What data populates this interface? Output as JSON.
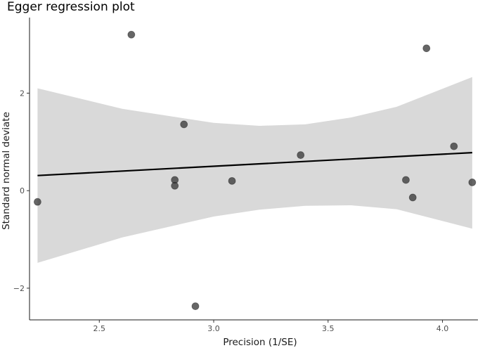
{
  "chart_data": {
    "type": "scatter",
    "title": "Egger regression plot",
    "xlabel": "Precision (1/SE)",
    "ylabel": "Standard normal deviate",
    "xlim": [
      2.195,
      4.155
    ],
    "ylim": [
      -2.65,
      3.55
    ],
    "x_ticks": [
      2.5,
      3.0,
      3.5,
      4.0
    ],
    "x_tick_labels": [
      "2.5",
      "3.0",
      "3.5",
      "4.0"
    ],
    "y_ticks": [
      -2,
      0,
      2
    ],
    "y_tick_labels": [
      "−2",
      "0",
      "2"
    ],
    "grid": false,
    "points": {
      "x": [
        2.23,
        2.64,
        2.83,
        2.83,
        2.87,
        2.92,
        3.08,
        3.38,
        3.84,
        3.87,
        3.93,
        4.05,
        4.13
      ],
      "y": [
        -0.23,
        3.2,
        0.22,
        0.1,
        1.36,
        -2.37,
        0.2,
        0.73,
        0.22,
        -0.14,
        2.92,
        0.91,
        0.17
      ]
    },
    "regression_line": {
      "x": [
        2.23,
        4.13
      ],
      "y": [
        0.31,
        0.78
      ]
    },
    "confidence_band": {
      "x": [
        2.23,
        2.6,
        3.0,
        3.2,
        3.4,
        3.6,
        3.8,
        4.13
      ],
      "upper": [
        2.1,
        1.68,
        1.39,
        1.33,
        1.36,
        1.5,
        1.72,
        2.33
      ],
      "lower": [
        -1.48,
        -0.96,
        -0.53,
        -0.39,
        -0.31,
        -0.3,
        -0.38,
        -0.78
      ]
    },
    "colors": {
      "points": "#333333",
      "line": "#000000",
      "band": "#d9d9d9"
    }
  }
}
